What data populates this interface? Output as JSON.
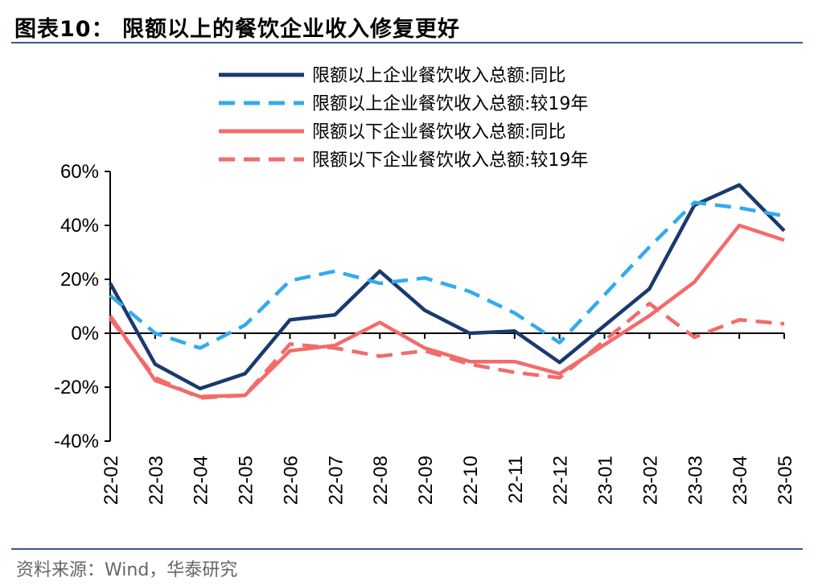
{
  "figure": {
    "title": "图表10：  限额以上的餐饮企业收入修复更好",
    "source": "资料来源：Wind，华泰研究"
  },
  "chart_data": {
    "type": "line",
    "categories": [
      "22-02",
      "22-03",
      "22-04",
      "22-05",
      "22-06",
      "22-07",
      "22-08",
      "22-09",
      "22-10",
      "22-11",
      "22-12",
      "23-01",
      "23-02",
      "23-03",
      "23-04",
      "23-05"
    ],
    "ylim": [
      -40,
      60
    ],
    "yticks": [
      -40,
      -20,
      0,
      20,
      40,
      60
    ],
    "ytick_labels": [
      "-40%",
      "-20%",
      "0%",
      "20%",
      "40%",
      "60%"
    ],
    "y_unit": "%",
    "legend_position": "top",
    "series": [
      {
        "name": "限额以上企业餐饮收入总额:同比",
        "color": "#1a3a6e",
        "dash": "solid",
        "values": [
          18.5,
          -11.5,
          -20.5,
          -15.0,
          5.0,
          6.8,
          23.0,
          8.5,
          0.0,
          0.8,
          -10.8,
          null,
          16.5,
          47.5,
          55.0,
          38.0
        ]
      },
      {
        "name": "限额以上企业餐饮收入总额:较19年",
        "color": "#33aaee",
        "dash": "dashed",
        "values": [
          14.0,
          0.0,
          -5.5,
          3.0,
          19.5,
          23.0,
          18.5,
          20.5,
          15.5,
          7.5,
          -3.5,
          null,
          32.0,
          48.5,
          46.5,
          43.5
        ]
      },
      {
        "name": "限额以下企业餐饮收入总额:同比",
        "color": "#f26b6b",
        "dash": "solid",
        "values": [
          6.5,
          -17.5,
          -23.5,
          -23.0,
          -6.5,
          -4.5,
          4.0,
          -5.5,
          -10.5,
          -10.5,
          -15.0,
          null,
          6.5,
          19.0,
          40.0,
          34.5
        ]
      },
      {
        "name": "限额以下企业餐饮收入总额:较19年",
        "color": "#f26b6b",
        "dash": "dashed",
        "values": [
          5.5,
          -16.5,
          -24.0,
          -23.0,
          -4.0,
          -5.5,
          -8.5,
          -6.5,
          -11.5,
          -14.5,
          -16.5,
          null,
          11.0,
          -1.5,
          5.0,
          3.5
        ]
      }
    ]
  }
}
